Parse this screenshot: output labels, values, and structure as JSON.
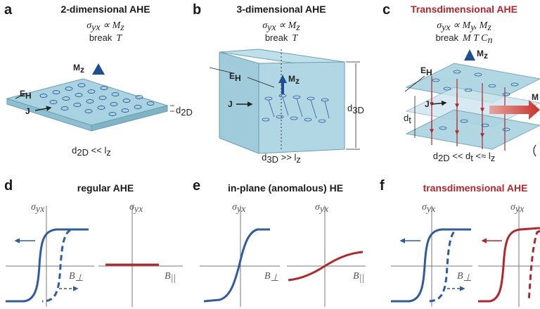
{
  "panels": {
    "a": {
      "letter": "a",
      "title": "2-dimensional AHE",
      "relation": "σ",
      "relation_sub": "yx",
      "relation_rest": " ∝  M",
      "relation_rest_sub": "z",
      "break_word": "break",
      "break_symbols": "T",
      "labels": {
        "mz": "M",
        "mz_sub": "z",
        "eh": "E",
        "eh_sub": "H",
        "j": "J",
        "d": "d",
        "d_sub": "2D"
      },
      "condition": "d",
      "condition_sub": "2D",
      "condition_rest": " << l",
      "condition_rest_sub": "z"
    },
    "b": {
      "letter": "b",
      "title": "3-dimensional AHE",
      "relation": "σ",
      "relation_sub": "yx",
      "relation_rest": " ∝  M",
      "relation_rest_sub": "z",
      "break_word": "break",
      "break_symbols": "T",
      "labels": {
        "mz": "M",
        "mz_sub": "z",
        "eh": "E",
        "eh_sub": "H",
        "j": "J",
        "d": "d",
        "d_sub": "3D"
      },
      "condition": "d",
      "condition_sub": "3D",
      "condition_rest": " >> l",
      "condition_rest_sub": "z"
    },
    "c": {
      "letter": "c",
      "title": "Transdimensional AHE",
      "relation": "σ",
      "relation_sub": "yx",
      "relation_rest": " ∝  M",
      "relation_rest_sub": "y",
      "relation_rest2": ", M",
      "relation_rest2_sub": "z",
      "break_word": "break",
      "break_symbols": "M  T  C",
      "break_symbols_sub": "n",
      "labels": {
        "mz": "M",
        "mz_sub": "z",
        "eh": "E",
        "eh_sub": "H",
        "j": "J",
        "d": "d",
        "d_sub": "t",
        "m_cut": "M"
      },
      "condition": "d",
      "condition_sub": "2D",
      "condition_rest": " << d",
      "condition_rest_sub": "t",
      "condition_rest2": " <≈ l",
      "condition_rest2_sub": "z"
    },
    "d": {
      "letter": "d",
      "title": "regular AHE",
      "y_label": "σ",
      "y_label_sub": "yx",
      "x_label_1": "B",
      "x_label_1_sub": "⊥",
      "x_label_2": "B",
      "x_label_2_sub": "||"
    },
    "e": {
      "letter": "e",
      "title": "in-plane (anomalous) HE",
      "y_label": "σ",
      "y_label_sub": "yx",
      "x_label_1": "B",
      "x_label_1_sub": "⊥",
      "x_label_2": "B",
      "x_label_2_sub": "||"
    },
    "f": {
      "letter": "f",
      "title": "transdimensional AHE",
      "y_label": "σ",
      "y_label_sub": "yx",
      "x_label_1": "B",
      "x_label_1_sub": "⊥"
    }
  },
  "colors": {
    "blue": "#2f5c9c",
    "red": "#b3262c",
    "slab": "#a9d3e0",
    "slab_edge": "#6a9fb3",
    "axis": "#777777"
  }
}
